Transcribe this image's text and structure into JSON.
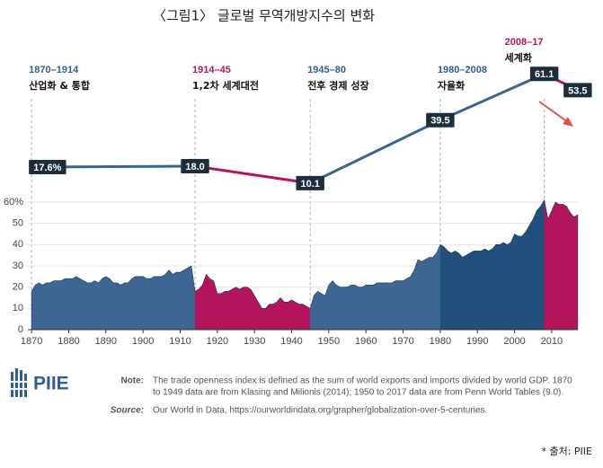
{
  "title": "〈그림1〉 글로벌 무역개방지수의 변화",
  "chart_data": [
    {
      "type": "line",
      "x": [
        1870,
        1914,
        1945,
        1980,
        2008,
        2017
      ],
      "values": [
        17.6,
        18.0,
        10.1,
        39.5,
        61.1,
        53.5
      ],
      "value_labels": [
        "17.6%",
        "18.0",
        "10.1",
        "39.5",
        "61.1",
        "53.5"
      ],
      "segment_colors": [
        "#3a6591",
        "#b3155c",
        "#3a6591",
        "#3a6591",
        "#b3155c"
      ],
      "label_box_color": "#1c2d3e",
      "xlim": [
        1869,
        2018
      ],
      "ylim": [
        0,
        70
      ],
      "eras": [
        {
          "years": "1870–1914",
          "label": "산업화 & 통합"
        },
        {
          "years": "1914–45",
          "label": "1,2차 세계대전"
        },
        {
          "years": "1945–80",
          "label": "전후 경제 성장"
        },
        {
          "years": "1980–2008",
          "label": "자율화"
        },
        {
          "years": "2008–17",
          "label": "세계화"
        }
      ]
    },
    {
      "type": "area",
      "x": [
        1870,
        1871,
        1872,
        1873,
        1874,
        1875,
        1876,
        1877,
        1878,
        1879,
        1880,
        1881,
        1882,
        1883,
        1884,
        1885,
        1886,
        1887,
        1888,
        1889,
        1890,
        1891,
        1892,
        1893,
        1894,
        1895,
        1896,
        1897,
        1898,
        1899,
        1900,
        1901,
        1902,
        1903,
        1904,
        1905,
        1906,
        1907,
        1908,
        1909,
        1910,
        1911,
        1912,
        1913,
        1914,
        1915,
        1916,
        1917,
        1918,
        1919,
        1920,
        1921,
        1922,
        1923,
        1924,
        1925,
        1926,
        1927,
        1928,
        1929,
        1930,
        1931,
        1932,
        1933,
        1934,
        1935,
        1936,
        1937,
        1938,
        1939,
        1940,
        1941,
        1942,
        1943,
        1944,
        1945,
        1946,
        1947,
        1948,
        1949,
        1950,
        1951,
        1952,
        1953,
        1954,
        1955,
        1956,
        1957,
        1958,
        1959,
        1960,
        1961,
        1962,
        1963,
        1964,
        1965,
        1966,
        1967,
        1968,
        1969,
        1970,
        1971,
        1972,
        1973,
        1974,
        1975,
        1976,
        1977,
        1978,
        1979,
        1980,
        1981,
        1982,
        1983,
        1984,
        1985,
        1986,
        1987,
        1988,
        1989,
        1990,
        1991,
        1992,
        1993,
        1994,
        1995,
        1996,
        1997,
        1998,
        1999,
        2000,
        2001,
        2002,
        2003,
        2004,
        2005,
        2006,
        2007,
        2008,
        2009,
        2010,
        2011,
        2012,
        2013,
        2014,
        2015,
        2016,
        2017
      ],
      "values": [
        18,
        21,
        22,
        21,
        22,
        22,
        23,
        23,
        23,
        24,
        24,
        24,
        25,
        24,
        23,
        22,
        22,
        23,
        22,
        24,
        25,
        24,
        22,
        22,
        21,
        22,
        22,
        24,
        25,
        25,
        25,
        24,
        24,
        25,
        25,
        25,
        26,
        28,
        26,
        27,
        27,
        28,
        29,
        30,
        18,
        19,
        21,
        26,
        24,
        23,
        17,
        17,
        18,
        18,
        19,
        20,
        19,
        20,
        20,
        19,
        16,
        13,
        10,
        10,
        12,
        12,
        13,
        15,
        13,
        13,
        14,
        13,
        12,
        12,
        11,
        10,
        16,
        18,
        17,
        16,
        21,
        23,
        21,
        20,
        20,
        20,
        21,
        21,
        20,
        20,
        21,
        21,
        21,
        22,
        22,
        22,
        22,
        22,
        23,
        23,
        23,
        24,
        25,
        28,
        33,
        32,
        33,
        34,
        34,
        36,
        40,
        39,
        37,
        36,
        37,
        36,
        34,
        35,
        36,
        37,
        37,
        37,
        38,
        37,
        38,
        40,
        40,
        41,
        40,
        41,
        45,
        44,
        44,
        46,
        49,
        52,
        56,
        58,
        61,
        52,
        56,
        60,
        59,
        59,
        58,
        55,
        53,
        54
      ],
      "bands": {
        "starts": [
          1870,
          1914,
          1945,
          1980,
          2008
        ],
        "colors": [
          "#3d6792",
          "#b3155c",
          "#3d6792",
          "#1f4f7a",
          "#b3155c"
        ]
      },
      "xlim": [
        1869,
        2018
      ],
      "ylim": [
        0,
        60
      ],
      "xticks": [
        1870,
        1880,
        1890,
        1900,
        1910,
        1920,
        1930,
        1940,
        1950,
        1960,
        1970,
        1980,
        1990,
        2000,
        2010
      ],
      "yticks": [
        0,
        10,
        20,
        30,
        40,
        50,
        {
          "value": 60,
          "label": "60%"
        }
      ],
      "grid": true
    }
  ],
  "note_label": "Note:",
  "note": [
    "The trade openness index is defined as the sum of world exports and imports divided by world GDP. 1870",
    "to 1949 data are from Klasing and Milionis (2014); 1950 to 2017 data are from Penn World Tables (9.0)."
  ],
  "source_label": "Source:",
  "source": "Our World in Data, https://ourworldindata.org/grapher/globalization-over-5-centuries.",
  "logo": "PIIE",
  "credit": "* 출처: PIIE"
}
